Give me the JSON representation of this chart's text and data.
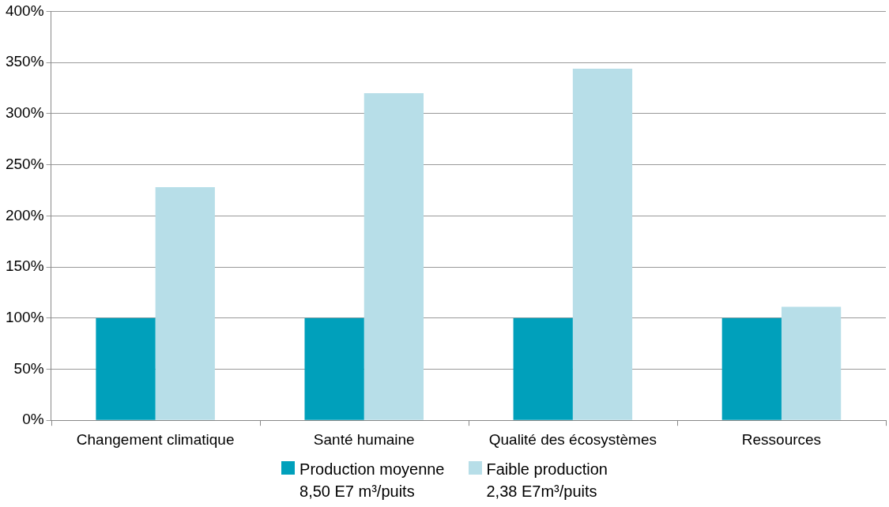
{
  "chart_data": {
    "type": "bar",
    "categories": [
      "Changement climatique",
      "Santé humaine",
      "Qualité des écosystèmes",
      "Ressources"
    ],
    "series": [
      {
        "name": "Production moyenne\n8,50 E7 m³/puits",
        "color": "#00a0bb",
        "values": [
          100,
          100,
          100,
          100
        ]
      },
      {
        "name": "Faible production\n2,38 E7m³/puits",
        "color": "#b7dee8",
        "values": [
          228,
          320,
          344,
          111
        ]
      }
    ],
    "ylim": [
      0,
      400
    ],
    "yticks": [
      {
        "value": 0,
        "label": "0%"
      },
      {
        "value": 50,
        "label": "50%"
      },
      {
        "value": 100,
        "label": "100%"
      },
      {
        "value": 150,
        "label": "150%"
      },
      {
        "value": 200,
        "label": "200%"
      },
      {
        "value": 250,
        "label": "250%"
      },
      {
        "value": 300,
        "label": "300%"
      },
      {
        "value": 350,
        "label": "350%"
      },
      {
        "value": 400,
        "label": "400%"
      }
    ],
    "grid": "y",
    "legend": "bottom"
  }
}
